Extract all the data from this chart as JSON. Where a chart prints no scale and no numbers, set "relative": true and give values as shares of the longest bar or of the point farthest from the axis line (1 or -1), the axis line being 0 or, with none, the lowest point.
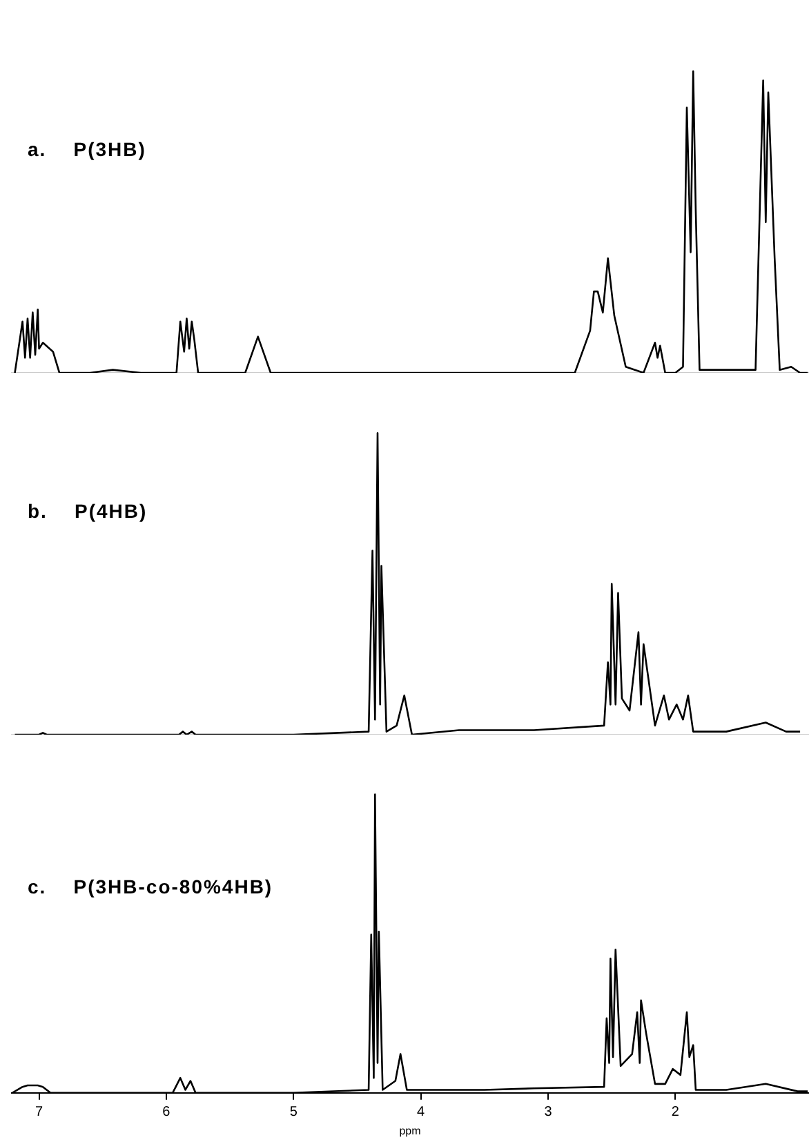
{
  "chart_data": [
    {
      "type": "line",
      "title": "a.    P(3HB)",
      "relative": true,
      "tick_labels": false,
      "grid": false,
      "xlim": [
        7.22,
        0.95
      ],
      "xticks": [
        7,
        6,
        5,
        4,
        3,
        2
      ],
      "series": [
        {
          "color": "#000000",
          "x": [
            7.19,
            7.13,
            7.11,
            7.09,
            7.07,
            7.05,
            7.03,
            7.01,
            7.0,
            6.97,
            6.89,
            6.84,
            6.6,
            6.42,
            6.2,
            5.92,
            5.89,
            5.86,
            5.84,
            5.82,
            5.8,
            5.78,
            5.75,
            5.72,
            5.6,
            5.38,
            5.28,
            5.18,
            4.5,
            3.5,
            2.79,
            2.67,
            2.64,
            2.61,
            2.57,
            2.53,
            2.48,
            2.39,
            2.25,
            2.16,
            2.14,
            2.12,
            2.08,
            2.0,
            1.94,
            1.91,
            1.88,
            1.86,
            1.84,
            1.81,
            1.61,
            1.37,
            1.31,
            1.29,
            1.27,
            1.22,
            1.18,
            1.09,
            1.02,
            0.96
          ],
          "values": [
            0,
            0.17,
            0.05,
            0.18,
            0.05,
            0.2,
            0.06,
            0.21,
            0.08,
            0.1,
            0.07,
            0,
            0,
            0.01,
            0,
            0,
            0.17,
            0.07,
            0.18,
            0.08,
            0.17,
            0.11,
            0,
            0,
            0,
            0,
            0.12,
            0,
            0,
            0,
            0,
            0.14,
            0.27,
            0.27,
            0.2,
            0.38,
            0.19,
            0.02,
            0,
            0.1,
            0.05,
            0.09,
            0,
            0,
            0.02,
            0.88,
            0.4,
            1.0,
            0.54,
            0.01,
            0.01,
            0.01,
            0.97,
            0.5,
            0.93,
            0.38,
            0.01,
            0.02,
            0,
            0
          ]
        }
      ]
    },
    {
      "type": "line",
      "title": "b.    P(4HB)",
      "relative": true,
      "tick_labels": false,
      "grid": false,
      "xlim": [
        7.22,
        0.95
      ],
      "xticks": [
        7,
        6,
        5,
        4,
        3,
        2
      ],
      "series": [
        {
          "color": "#000000",
          "x": [
            7.19,
            7.0,
            6.97,
            6.94,
            6.5,
            5.9,
            5.87,
            5.84,
            5.8,
            5.77,
            5.0,
            4.41,
            4.38,
            4.36,
            4.34,
            4.32,
            4.31,
            4.27,
            4.19,
            4.13,
            4.07,
            3.7,
            3.11,
            2.56,
            2.53,
            2.51,
            2.5,
            2.47,
            2.45,
            2.42,
            2.36,
            2.29,
            2.27,
            2.25,
            2.21,
            2.16,
            2.09,
            2.05,
            1.99,
            1.94,
            1.9,
            1.86,
            1.6,
            1.29,
            1.13,
            1.02
          ],
          "values": [
            0,
            0,
            0.006,
            0,
            0,
            0,
            0.01,
            0,
            0.01,
            0,
            0,
            0.01,
            0.61,
            0.05,
            1.0,
            0.1,
            0.56,
            0.01,
            0.03,
            0.13,
            0,
            0.015,
            0.015,
            0.03,
            0.24,
            0.1,
            0.5,
            0.1,
            0.47,
            0.12,
            0.08,
            0.34,
            0.1,
            0.3,
            0.18,
            0.03,
            0.13,
            0.05,
            0.1,
            0.05,
            0.13,
            0.01,
            0.01,
            0.04,
            0.01,
            0.01
          ]
        }
      ]
    },
    {
      "type": "line",
      "title": "c.    P(3HB-co-80%4HB)",
      "relative": true,
      "tick_labels": "x",
      "grid": false,
      "xlim": [
        7.22,
        0.95
      ],
      "xticks": [
        7,
        6,
        5,
        4,
        3,
        2
      ],
      "xlabel": "ppm",
      "series": [
        {
          "color": "#000000",
          "x": [
            7.21,
            7.13,
            7.09,
            7.05,
            7.01,
            6.97,
            6.91,
            6.5,
            5.95,
            5.89,
            5.85,
            5.81,
            5.77,
            5.0,
            4.41,
            4.39,
            4.37,
            4.36,
            4.34,
            4.33,
            4.3,
            4.2,
            4.16,
            4.11,
            3.5,
            3.11,
            2.56,
            2.54,
            2.52,
            2.51,
            2.49,
            2.47,
            2.43,
            2.34,
            2.3,
            2.28,
            2.27,
            2.23,
            2.16,
            2.08,
            2.02,
            1.96,
            1.91,
            1.89,
            1.86,
            1.84,
            1.6,
            1.29,
            1.04,
            0.96
          ],
          "values": [
            0,
            0.02,
            0.025,
            0.025,
            0.025,
            0.02,
            0,
            0,
            0,
            0.05,
            0.01,
            0.04,
            0,
            0,
            0.01,
            0.53,
            0.05,
            1.0,
            0.1,
            0.54,
            0.01,
            0.04,
            0.13,
            0.01,
            0.01,
            0.015,
            0.02,
            0.25,
            0.1,
            0.45,
            0.12,
            0.48,
            0.09,
            0.13,
            0.27,
            0.1,
            0.31,
            0.2,
            0.03,
            0.03,
            0.08,
            0.06,
            0.27,
            0.12,
            0.16,
            0.01,
            0.01,
            0.03,
            0.005,
            0.005
          ]
        }
      ]
    }
  ]
}
